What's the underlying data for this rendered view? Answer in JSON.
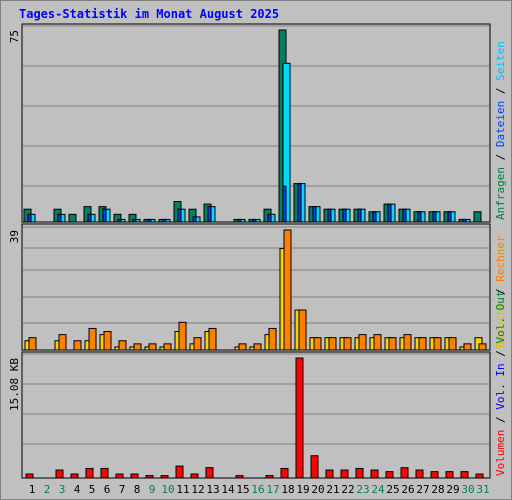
{
  "title": "Tages-Statistik im Monat August 2025",
  "colors": {
    "anfragen": "#008040",
    "dateien": "#0040FF",
    "seiten": "#00C0FF",
    "besuche": "#FFFF00",
    "rechner": "#FF8000",
    "volumen": "#FF0000",
    "volout": "#0000FF",
    "weekend": "#00805C",
    "weekday": "#000000"
  },
  "legend": {
    "top": [
      {
        "text": "Anfragen",
        "color": "#008040"
      },
      {
        "text": "Dateien",
        "color": "#0040FF"
      },
      {
        "text": "Seiten",
        "color": "#00C0FF"
      }
    ],
    "mid": [
      {
        "text": "Besuche",
        "color": "#E0C000"
      },
      {
        "text": "Rechner",
        "color": "#FF8000"
      }
    ],
    "bot": [
      {
        "text": "Volumen",
        "color": "#FF0000"
      },
      {
        "text": "Vol. In",
        "color": "#0000FF"
      },
      {
        "text": "Vol. Out",
        "color": "#008040"
      }
    ]
  },
  "chart_data": {
    "type": "bar",
    "x": [
      1,
      2,
      3,
      4,
      5,
      6,
      7,
      8,
      9,
      10,
      11,
      12,
      13,
      14,
      15,
      16,
      17,
      18,
      19,
      20,
      21,
      22,
      23,
      24,
      25,
      26,
      27,
      28,
      29,
      30,
      31
    ],
    "weekend_days": [
      2,
      3,
      9,
      10,
      16,
      17,
      23,
      24,
      30,
      31
    ],
    "panels": [
      {
        "name": "top",
        "ymax_label": "75",
        "ymax": 75,
        "series": [
          {
            "name": "Anfragen",
            "values": [
              5,
              0,
              5,
              3,
              6,
              6,
              3,
              3,
              1,
              1,
              8,
              5,
              7,
              0,
              1,
              1,
              5,
              75,
              15,
              6,
              5,
              5,
              5,
              4,
              7,
              5,
              4,
              4,
              4,
              1,
              4
            ]
          },
          {
            "name": "Dateien",
            "values": [
              3,
              0,
              3,
              0,
              3,
              5,
              1,
              1,
              1,
              1,
              5,
              2,
              6,
              0,
              1,
              1,
              3,
              14,
              15,
              6,
              5,
              5,
              5,
              4,
              7,
              5,
              4,
              4,
              4,
              1,
              0
            ]
          },
          {
            "name": "Seiten",
            "values": [
              3,
              0,
              3,
              0,
              3,
              5,
              1,
              1,
              1,
              1,
              5,
              2,
              6,
              0,
              1,
              1,
              3,
              62,
              15,
              6,
              5,
              5,
              5,
              4,
              7,
              5,
              4,
              4,
              4,
              1,
              0
            ]
          }
        ]
      },
      {
        "name": "mid",
        "ymax_label": "39",
        "ymax": 39,
        "series": [
          {
            "name": "Besuche",
            "values": [
              3,
              0,
              3,
              0,
              3,
              5,
              1,
              1,
              1,
              1,
              6,
              2,
              6,
              0,
              1,
              1,
              5,
              33,
              13,
              4,
              4,
              4,
              4,
              4,
              4,
              4,
              4,
              4,
              4,
              1,
              4
            ]
          },
          {
            "name": "Rechner",
            "values": [
              4,
              0,
              5,
              3,
              7,
              6,
              3,
              2,
              2,
              2,
              9,
              4,
              7,
              0,
              2,
              2,
              7,
              39,
              13,
              4,
              4,
              4,
              5,
              5,
              4,
              5,
              4,
              4,
              4,
              2,
              2
            ]
          }
        ]
      },
      {
        "name": "bot",
        "ymax_label": "15.08 KB",
        "ymax": 15.08,
        "series": [
          {
            "name": "Volumen",
            "values": [
              0.5,
              0,
              1.0,
              0.5,
              1.2,
              1.2,
              0.5,
              0.5,
              0.3,
              0.3,
              1.5,
              0.5,
              1.3,
              0,
              0.3,
              0,
              0.3,
              1.2,
              15.08,
              2.8,
              1.0,
              1.0,
              1.2,
              1.0,
              0.8,
              1.3,
              1.0,
              0.8,
              0.8,
              0.8,
              0.5
            ]
          }
        ]
      }
    ]
  }
}
